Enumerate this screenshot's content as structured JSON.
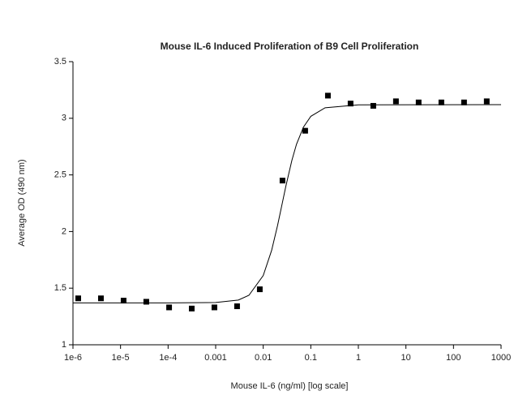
{
  "chart_data": {
    "type": "scatter",
    "title": "Mouse IL-6 Induced Proliferation of B9 Cell Proliferation",
    "x_label": "Mouse IL-6 (ng/ml) [log scale]",
    "y_label": "Average OD (490 nm)",
    "x_scale": "log",
    "xlim": [
      1e-06,
      1000
    ],
    "ylim": [
      1,
      3.5
    ],
    "xticks": [
      {
        "value": 1e-06,
        "label": "1e-6"
      },
      {
        "value": 1e-05,
        "label": "1e-5"
      },
      {
        "value": 0.0001,
        "label": "1e-4"
      },
      0.001,
      0.01,
      0.1,
      1,
      10,
      100,
      1000
    ],
    "yticks": [
      1,
      1.5,
      2,
      2.5,
      3,
      3.5
    ],
    "series": [
      {
        "type": "scatter",
        "color": "#000000",
        "x": [
          1.29e-06,
          3.87e-06,
          1.16e-05,
          3.48e-05,
          0.000105,
          0.000314,
          0.000941,
          0.00282,
          0.00847,
          0.0254,
          0.0762,
          0.229,
          0.686,
          2.06,
          6.17,
          18.5,
          55.6,
          166.7,
          500
        ],
        "values": [
          1.41,
          1.41,
          1.39,
          1.38,
          1.33,
          1.32,
          1.33,
          1.34,
          1.49,
          2.45,
          2.89,
          3.2,
          3.13,
          3.11,
          3.15,
          3.14,
          3.14,
          3.14,
          3.15
        ]
      },
      {
        "type": "line",
        "color": "#000000",
        "x": [
          1e-06,
          0.0001,
          0.001,
          0.003,
          0.005,
          0.01,
          0.015,
          0.02,
          0.025,
          0.03,
          0.04,
          0.05,
          0.07,
          0.1,
          0.2,
          1,
          1000
        ],
        "values": [
          1.37,
          1.37,
          1.373,
          1.395,
          1.437,
          1.611,
          1.833,
          2.053,
          2.245,
          2.403,
          2.628,
          2.77,
          2.922,
          3.017,
          3.093,
          3.119,
          3.12
        ]
      }
    ]
  }
}
